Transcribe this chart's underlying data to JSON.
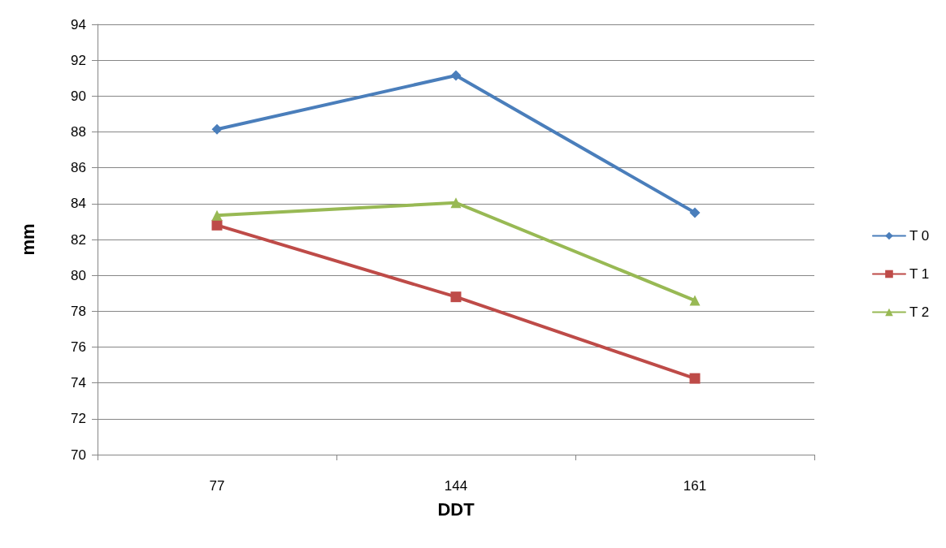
{
  "chart_data": {
    "type": "line",
    "xlabel": "DDT",
    "ylabel": "mm",
    "categories": [
      "77",
      "144",
      "161"
    ],
    "series": [
      {
        "name": "T 0",
        "color": "#4a7ebb",
        "marker": "diamond",
        "values": [
          88.15,
          91.15,
          83.5
        ]
      },
      {
        "name": "T 1",
        "color": "#be4b48",
        "marker": "square",
        "values": [
          82.8,
          78.8,
          74.25
        ]
      },
      {
        "name": "T 2",
        "color": "#98b954",
        "marker": "triangle",
        "values": [
          83.35,
          84.05,
          78.6
        ]
      }
    ],
    "ylim": [
      70,
      94
    ],
    "yticks": [
      70,
      72,
      74,
      76,
      78,
      80,
      82,
      84,
      86,
      88,
      90,
      92,
      94
    ],
    "grid": "y",
    "legend": "right"
  }
}
